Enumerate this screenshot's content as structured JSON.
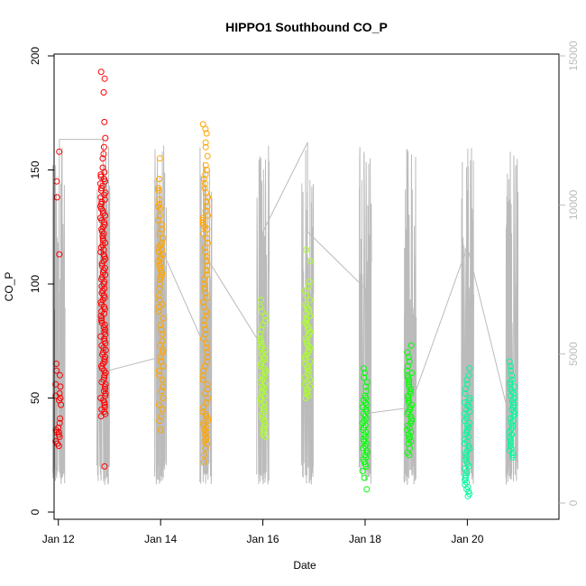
{
  "chart_data": {
    "type": "scatter",
    "title": "HIPPO1 Southbound CO_P",
    "xlabel": "Date",
    "ylabel": "CO_P",
    "x_axis": {
      "type": "date",
      "range": [
        "2009-01-11 22:00",
        "2009-01-21 19:00"
      ],
      "ticks": [
        {
          "value": "2009-01-12",
          "label": "Jan 12"
        },
        {
          "value": "2009-01-14",
          "label": "Jan 14"
        },
        {
          "value": "2009-01-16",
          "label": "Jan 16"
        },
        {
          "value": "2009-01-18",
          "label": "Jan 18"
        },
        {
          "value": "2009-01-20",
          "label": "Jan 20"
        }
      ]
    },
    "y_axis_left": {
      "range": [
        0,
        200
      ],
      "ticks": [
        0,
        50,
        100,
        150,
        200
      ]
    },
    "y_axis_right": {
      "range": [
        0,
        15000
      ],
      "ticks": [
        0,
        5000,
        10000,
        15000
      ],
      "color": "#bbbbbb"
    },
    "grid": false,
    "legend": "none",
    "series": [
      {
        "kind": "points",
        "axis": "left",
        "marker": "open-circle",
        "groups": [
          {
            "date": "2009-01-12",
            "center_hour": 0.0,
            "color": "#ff0000",
            "values": [
              158,
              145,
              138,
              113,
              65,
              62,
              60,
              56,
              55,
              52,
              51,
              50,
              49,
              47,
              41,
              39,
              37,
              36,
              35,
              35,
              34,
              33,
              31,
              30,
              29
            ]
          },
          {
            "date": "2009-01-12",
            "center_hour": 21.0,
            "color": "#ff0000",
            "values": [
              193,
              190,
              184,
              171,
              164,
              160,
              157,
              155,
              151,
              149,
              148,
              147,
              146,
              145,
              144,
              143,
              142,
              141,
              140,
              139,
              138,
              137,
              136,
              135,
              134,
              133,
              132,
              131,
              130,
              129,
              128,
              127,
              126,
              125,
              124,
              123,
              122,
              121,
              120,
              119,
              118,
              117,
              116,
              115,
              114,
              113,
              112,
              111,
              110,
              109,
              108,
              107,
              106,
              105,
              104,
              103,
              102,
              101,
              100,
              99,
              98,
              97,
              96,
              95,
              94,
              93,
              92,
              91,
              90,
              89,
              88,
              87,
              86,
              85,
              84,
              83,
              82,
              81,
              80,
              79,
              78,
              77,
              76,
              75,
              74,
              73,
              72,
              71,
              70,
              69,
              68,
              67,
              66,
              65,
              64,
              63,
              62,
              61,
              60,
              59,
              58,
              57,
              56,
              55,
              54,
              53,
              52,
              51,
              50,
              49,
              48,
              47,
              46,
              45,
              44,
              43,
              42,
              20
            ]
          },
          {
            "date": "2009-01-14",
            "center_hour": 0.0,
            "color": "#ffa500",
            "values": [
              155,
              146,
              142,
              141,
              137,
              135,
              134,
              133,
              130,
              128,
              126,
              124,
              122,
              120,
              118,
              117,
              116,
              115,
              114,
              113,
              112,
              111,
              110,
              109,
              108,
              107,
              106,
              105,
              104,
              103,
              102,
              100,
              98,
              95,
              93,
              91,
              90,
              88,
              85,
              82,
              80,
              78,
              75,
              73,
              71,
              70,
              68,
              66,
              64,
              62,
              60,
              58,
              55,
              53,
              50,
              47,
              45,
              42,
              40,
              36
            ]
          },
          {
            "date": "2009-01-14",
            "center_hour": 21.0,
            "color": "#ffa500",
            "values": [
              170,
              168,
              166,
              162,
              160,
              156,
              152,
              150,
              148,
              146,
              144,
              142,
              140,
              138,
              136,
              134,
              132,
              130,
              129,
              128,
              127,
              126,
              125,
              124,
              122,
              120,
              118,
              116,
              114,
              112,
              110,
              108,
              106,
              104,
              102,
              100,
              98,
              96,
              94,
              92,
              90,
              88,
              86,
              84,
              82,
              80,
              78,
              76,
              74,
              72,
              70,
              68,
              66,
              64,
              62,
              60,
              58,
              56,
              54,
              52,
              50,
              48,
              46,
              44,
              43,
              42,
              41,
              40,
              39,
              38,
              37,
              36,
              35,
              34,
              33,
              32,
              31,
              30,
              28,
              25,
              22
            ]
          },
          {
            "date": "2009-01-16",
            "center_hour": 0.0,
            "color": "#adff2f",
            "values": [
              93,
              90,
              88,
              86,
              84,
              82,
              80,
              78,
              76,
              75,
              74,
              73,
              72,
              71,
              70,
              69,
              68,
              67,
              66,
              65,
              64,
              63,
              62,
              61,
              60,
              59,
              58,
              57,
              56,
              55,
              54,
              53,
              52,
              51,
              50,
              49,
              48,
              47,
              46,
              45,
              44,
              43,
              42,
              41,
              40,
              39,
              38,
              37,
              36,
              35,
              34,
              33
            ]
          },
          {
            "date": "2009-01-16",
            "center_hour": 21.0,
            "color": "#adff2f",
            "values": [
              115,
              110,
              101,
              99,
              97,
              95,
              93,
              91,
              90,
              89,
              88,
              87,
              86,
              85,
              84,
              83,
              82,
              81,
              80,
              79,
              78,
              77,
              76,
              75,
              74,
              73,
              72,
              71,
              70,
              69,
              68,
              67,
              66,
              65,
              64,
              63,
              62,
              61,
              60,
              59,
              58,
              57,
              56,
              55,
              54,
              53,
              52,
              51,
              50
            ]
          },
          {
            "date": "2009-01-18",
            "center_hour": 0.0,
            "color": "#00ff00",
            "values": [
              63,
              61,
              59,
              57,
              55,
              53,
              51,
              50,
              49,
              48,
              47,
              46,
              45,
              44,
              43,
              42,
              41,
              40,
              39,
              38,
              37,
              36,
              35,
              34,
              33,
              32,
              31,
              30,
              29,
              28,
              27,
              26,
              25,
              24,
              23,
              22,
              21,
              20,
              18,
              15,
              10
            ]
          },
          {
            "date": "2009-01-18",
            "center_hour": 21.0,
            "color": "#00ff00",
            "values": [
              73,
              70,
              68,
              66,
              64,
              62,
              61,
              60,
              59,
              58,
              57,
              56,
              55,
              54,
              53,
              52,
              51,
              50,
              49,
              48,
              47,
              46,
              45,
              44,
              43,
              42,
              41,
              40,
              39,
              38,
              37,
              36,
              35,
              34,
              33,
              32,
              31,
              30,
              28,
              26,
              25
            ]
          },
          {
            "date": "2009-01-20",
            "center_hour": 0.0,
            "color": "#00fa9a",
            "values": [
              63,
              60,
              58,
              56,
              54,
              52,
              50,
              49,
              48,
              47,
              46,
              45,
              44,
              43,
              42,
              41,
              40,
              39,
              38,
              37,
              36,
              35,
              34,
              33,
              32,
              31,
              30,
              29,
              28,
              27,
              26,
              25,
              24,
              23,
              22,
              21,
              20,
              19,
              18,
              17,
              16,
              15,
              14,
              13,
              12,
              11,
              10,
              9,
              8,
              7
            ]
          },
          {
            "date": "2009-01-20",
            "center_hour": 21.0,
            "color": "#00fa9a",
            "values": [
              66,
              64,
              62,
              60,
              58,
              57,
              56,
              55,
              54,
              53,
              52,
              51,
              50,
              49,
              48,
              47,
              46,
              45,
              44,
              43,
              42,
              41,
              40,
              39,
              38,
              37,
              36,
              35,
              34,
              33,
              32,
              31,
              30,
              29,
              28,
              27,
              26,
              25,
              24
            ]
          }
        ]
      },
      {
        "kind": "line",
        "axis": "right",
        "color": "#bbbbbb",
        "description_points": [
          {
            "x": "2009-01-12 00:00",
            "y": 3600
          },
          {
            "x": "2009-01-12 00:30",
            "y": 12200
          },
          {
            "x": "2009-01-12 21:00",
            "y": 12200
          },
          {
            "x": "2009-01-12 21:00",
            "y": 4400
          },
          {
            "x": "2009-01-14 00:00",
            "y": 4900
          },
          {
            "x": "2009-01-14 00:00",
            "y": 8600
          },
          {
            "x": "2009-01-14 21:00",
            "y": 5200
          },
          {
            "x": "2009-01-14 21:00",
            "y": 8300
          },
          {
            "x": "2009-01-16 00:00",
            "y": 5200
          },
          {
            "x": "2009-01-16 00:00",
            "y": 9100
          },
          {
            "x": "2009-01-16 21:00",
            "y": 12100
          },
          {
            "x": "2009-01-16 21:00",
            "y": 9100
          },
          {
            "x": "2009-01-18 00:00",
            "y": 7200
          },
          {
            "x": "2009-01-18 00:00",
            "y": 3000
          },
          {
            "x": "2009-01-18 21:00",
            "y": 3200
          },
          {
            "x": "2009-01-20 00:00",
            "y": 8600
          },
          {
            "x": "2009-01-20 21:00",
            "y": 2500
          }
        ]
      }
    ]
  }
}
